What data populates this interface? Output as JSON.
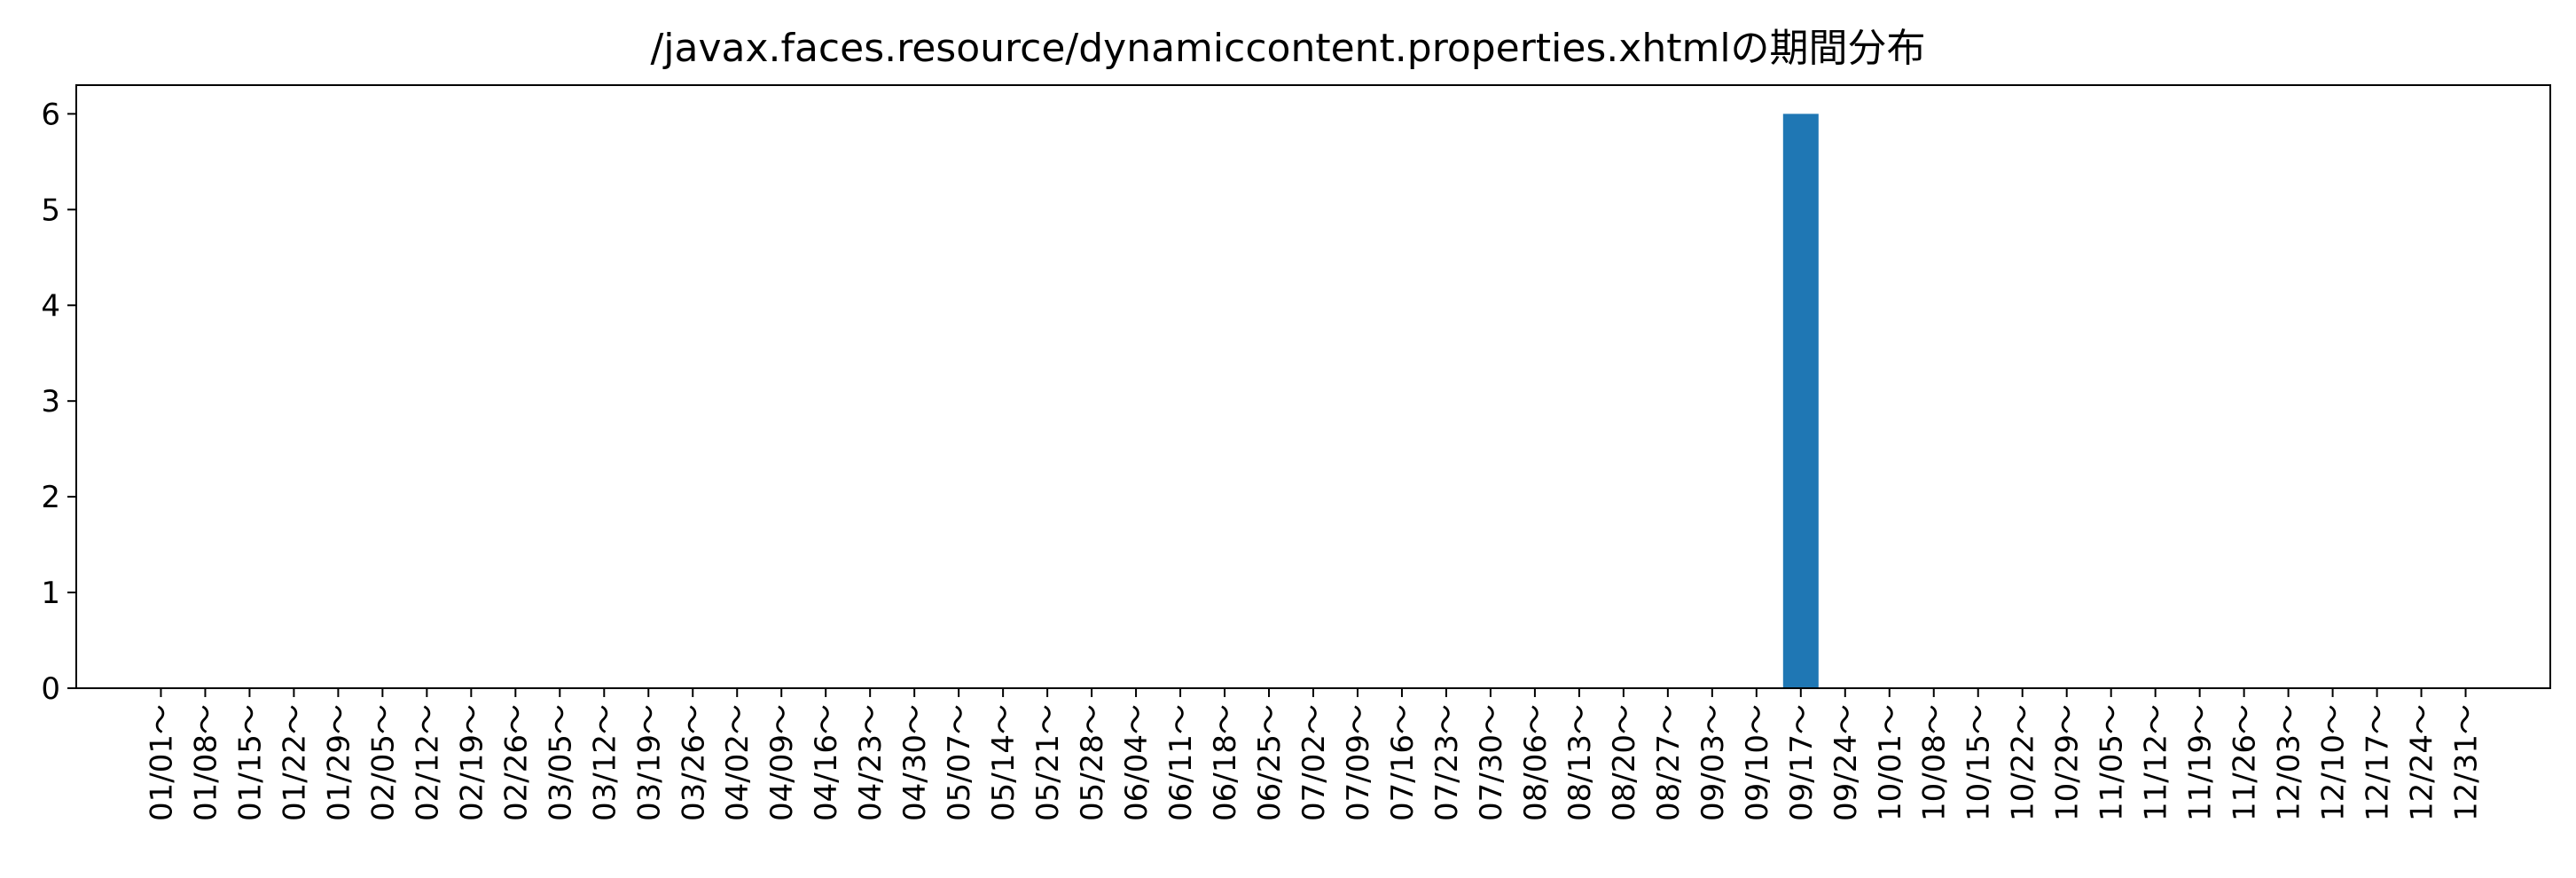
{
  "chart_data": {
    "type": "bar",
    "title": "/javax.faces.resource/dynamiccontent.properties.xhtmlの期間分布",
    "xlabel": "",
    "ylabel": "",
    "categories": [
      "01/01～",
      "01/08～",
      "01/15～",
      "01/22～",
      "01/29～",
      "02/05～",
      "02/12～",
      "02/19～",
      "02/26～",
      "03/05～",
      "03/12～",
      "03/19～",
      "03/26～",
      "04/02～",
      "04/09～",
      "04/16～",
      "04/23～",
      "04/30～",
      "05/07～",
      "05/14～",
      "05/21～",
      "05/28～",
      "06/04～",
      "06/11～",
      "06/18～",
      "06/25～",
      "07/02～",
      "07/09～",
      "07/16～",
      "07/23～",
      "07/30～",
      "08/06～",
      "08/13～",
      "08/20～",
      "08/27～",
      "09/03～",
      "09/10～",
      "09/17～",
      "09/24～",
      "10/01～",
      "10/08～",
      "10/15～",
      "10/22～",
      "10/29～",
      "11/05～",
      "11/12～",
      "11/19～",
      "11/26～",
      "12/03～",
      "12/10～",
      "12/17～",
      "12/24～",
      "12/31～"
    ],
    "values": [
      0,
      0,
      0,
      0,
      0,
      0,
      0,
      0,
      0,
      0,
      0,
      0,
      0,
      0,
      0,
      0,
      0,
      0,
      0,
      0,
      0,
      0,
      0,
      0,
      0,
      0,
      0,
      0,
      0,
      0,
      0,
      0,
      0,
      0,
      0,
      0,
      0,
      6,
      0,
      0,
      0,
      0,
      0,
      0,
      0,
      0,
      0,
      0,
      0,
      0,
      0,
      0,
      0
    ],
    "yticks": [
      "0",
      "1",
      "2",
      "3",
      "4",
      "5",
      "6"
    ],
    "ylim": [
      0,
      6.3
    ],
    "grid": false,
    "bar_color": "#1f77b4"
  }
}
